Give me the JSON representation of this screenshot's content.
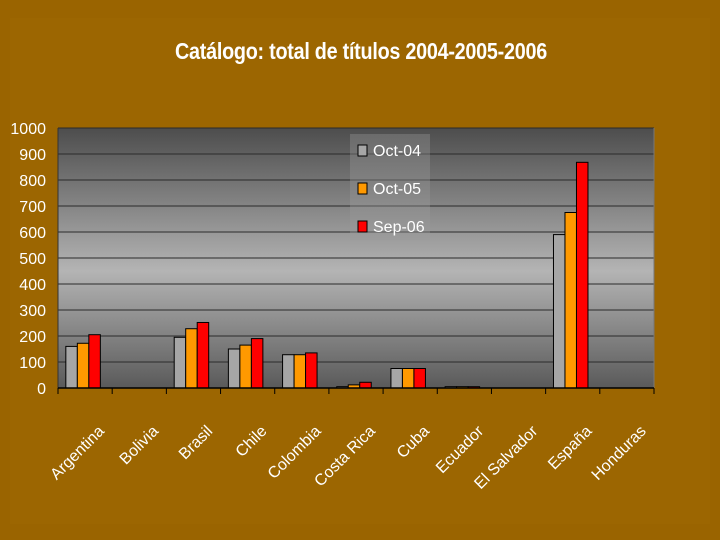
{
  "chart_data": {
    "type": "bar",
    "title": "Catálogo: total de títulos 2004-2005-2006",
    "xlabel": "",
    "ylabel": "",
    "ylim": [
      0,
      1000
    ],
    "yticks": [
      0,
      100,
      200,
      300,
      400,
      500,
      600,
      700,
      800,
      900,
      1000
    ],
    "grid": true,
    "legend": "top-center",
    "categories": [
      "Argentina",
      "Bolivia",
      "Brasil",
      "Chile",
      "Colombia",
      "Costa Rica",
      "Cuba",
      "Ecuador",
      "El Salvador",
      "España",
      "Honduras"
    ],
    "series": [
      {
        "name": "Oct-04",
        "color": "#a6a6a6",
        "values": [
          160,
          0,
          195,
          150,
          128,
          5,
          75,
          5,
          0,
          590,
          0
        ]
      },
      {
        "name": "Oct-05",
        "color": "#ff9900",
        "values": [
          172,
          0,
          228,
          165,
          128,
          12,
          75,
          5,
          0,
          675,
          0
        ]
      },
      {
        "name": "Sep-06",
        "color": "#ff0000",
        "values": [
          205,
          0,
          252,
          190,
          135,
          22,
          75,
          5,
          0,
          868,
          0
        ]
      }
    ]
  }
}
